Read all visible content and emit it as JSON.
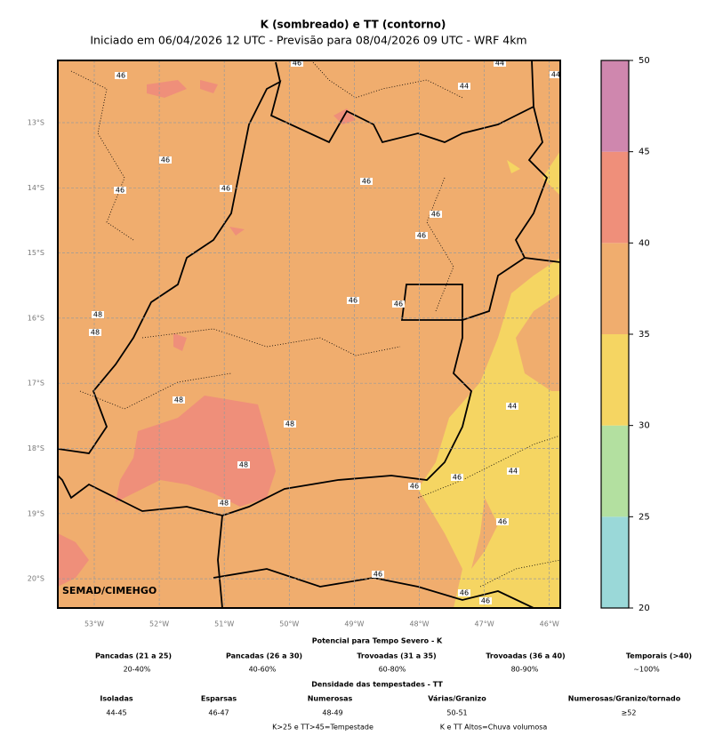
{
  "header": {
    "title": "K (sombreado) e TT (contorno)",
    "subtitle": "Iniciado em 06/04/2026 12 UTC - Previsão para 08/04/2026 09 UTC - WRF 4km"
  },
  "map": {
    "lon_ticks": [
      {
        "value": -53,
        "label": "53°W"
      },
      {
        "value": -52,
        "label": "52°W"
      },
      {
        "value": -51,
        "label": "51°W"
      },
      {
        "value": -50,
        "label": "50°W"
      },
      {
        "value": -49,
        "label": "49°W"
      },
      {
        "value": -48,
        "label": "48°W"
      },
      {
        "value": -47,
        "label": "47°W"
      },
      {
        "value": -46,
        "label": "46°W"
      }
    ],
    "lat_ticks": [
      {
        "value": -13,
        "label": "13°S"
      },
      {
        "value": -14,
        "label": "14°S"
      },
      {
        "value": -15,
        "label": "15°S"
      },
      {
        "value": -16,
        "label": "16°S"
      },
      {
        "value": -17,
        "label": "17°S"
      },
      {
        "value": -18,
        "label": "18°S"
      },
      {
        "value": -19,
        "label": "19°S"
      },
      {
        "value": -20,
        "label": "20°S"
      }
    ],
    "contour_labels": [
      46,
      46,
      44,
      44,
      44,
      46,
      46,
      46,
      46,
      46,
      46,
      46,
      46,
      48,
      48,
      48,
      48,
      44,
      44,
      46,
      48,
      46,
      48,
      46,
      46,
      46,
      46
    ],
    "credit": "SEMAD/CIMEHGO"
  },
  "colorbar": {
    "levels": [
      20,
      25,
      30,
      35,
      40,
      45,
      50
    ],
    "colors": [
      "#9ad8d8",
      "#b3e0a0",
      "#f5d562",
      "#f0ad6e",
      "#ef8f7a",
      "#cf87ae"
    ]
  },
  "legend": {
    "k": {
      "title": "Potencial para Tempo Severo - K",
      "items": [
        {
          "label": "Pancadas (21 a 25)",
          "range": "20-40%"
        },
        {
          "label": "Pancadas (26 a 30)",
          "range": "40-60%"
        },
        {
          "label": "Trovoadas (31 a 35)",
          "range": "60-80%"
        },
        {
          "label": "Trovoadas (36 a 40)",
          "range": "80-90%"
        },
        {
          "label": "Temporais (>40)",
          "range": "~100%"
        }
      ]
    },
    "tt": {
      "title": "Densidade das tempestades - TT",
      "items": [
        {
          "label": "Isoladas",
          "range": "44-45"
        },
        {
          "label": "Esparsas",
          "range": "46-47"
        },
        {
          "label": "Numerosas",
          "range": "48-49"
        },
        {
          "label": "Várias/Granizo",
          "range": "50-51"
        },
        {
          "label": "Numerosas/Granizo/tornado",
          "range": "≥52"
        }
      ]
    },
    "notes": [
      "K>25 e TT>45=Tempestade",
      "K e TT Altos=Chuva volumosa"
    ]
  }
}
